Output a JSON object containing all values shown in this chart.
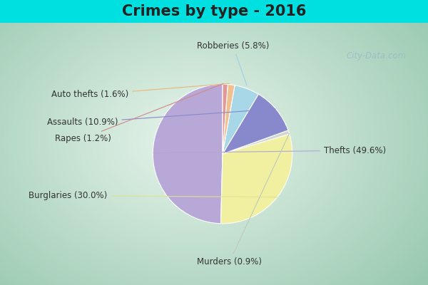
{
  "title": "Crimes by type - 2016",
  "title_fontsize": 15,
  "title_fontweight": "bold",
  "labels": [
    "Thefts",
    "Burglaries",
    "Murders",
    "Assaults",
    "Robberies",
    "Auto thefts",
    "Rapes"
  ],
  "values": [
    49.6,
    30.0,
    0.9,
    10.9,
    5.8,
    1.6,
    1.2
  ],
  "colors": [
    "#b8a8d8",
    "#f0f0a0",
    "#d0d8d0",
    "#8888cc",
    "#a8d8e8",
    "#f0c090",
    "#e09898"
  ],
  "pct_labels": [
    "Thefts (49.6%)",
    "Burglaries (30.0%)",
    "Murders (0.9%)",
    "Assaults (10.9%)",
    "Robberies (5.8%)",
    "Auto thefts (1.6%)",
    "Rapes (1.2%)"
  ],
  "label_positions": [
    [
      1.45,
      0.05,
      "left"
    ],
    [
      -1.65,
      -0.6,
      "right"
    ],
    [
      0.1,
      -1.55,
      "center"
    ],
    [
      -1.5,
      0.45,
      "right"
    ],
    [
      0.15,
      1.55,
      "center"
    ],
    [
      -1.35,
      0.85,
      "right"
    ],
    [
      -1.6,
      0.22,
      "right"
    ]
  ],
  "startangle": 90,
  "bg_cyan": "#00e0e0",
  "bg_grad_center": "#e8f5e8",
  "bg_grad_edge": "#a8ccb8",
  "watermark": "City-Data.com",
  "label_fontsize": 8.5,
  "title_color": "#222222",
  "label_color": "#333333",
  "line_color_thefts": "#b0a8d0",
  "line_color_burglaries": "#e0e090",
  "line_color_murders": "#c0c8c0",
  "line_color_assaults": "#8888cc",
  "line_color_robberies": "#a0d0e0",
  "line_color_autothefts": "#e8b878",
  "line_color_rapes": "#d08888"
}
